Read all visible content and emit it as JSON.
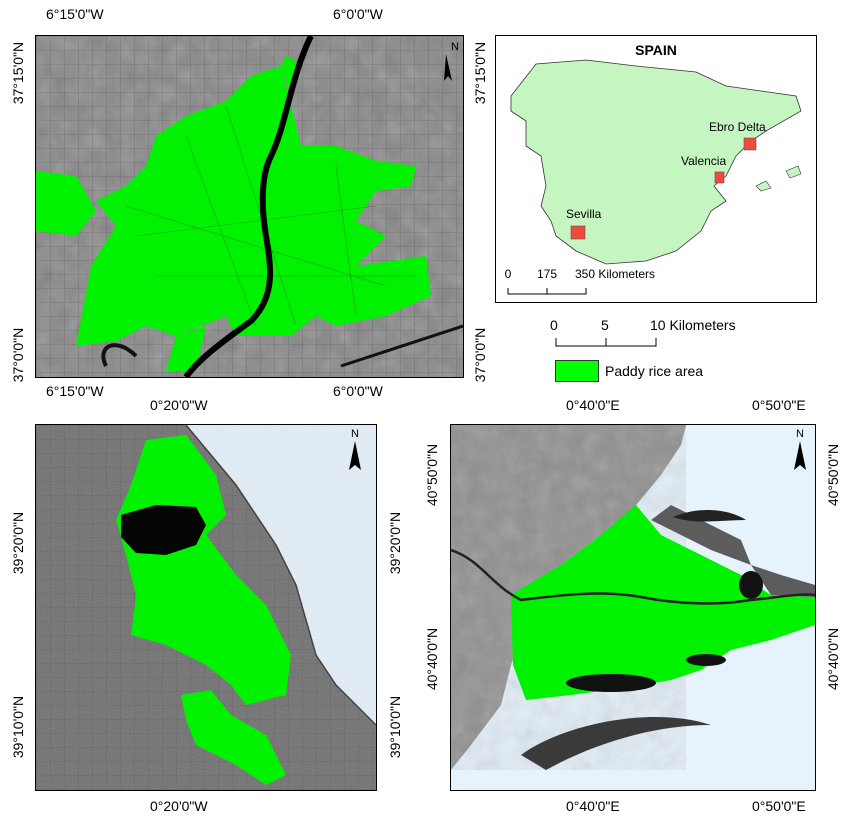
{
  "map1": {
    "top_labels": [
      "6°15'0\"W",
      "6°0'0\"W"
    ],
    "bottom_labels": [
      "6°15'0\"W",
      "6°0'0\"W"
    ],
    "left_labels": [
      "37°15'0\"N",
      "37°0'0\"N"
    ],
    "right_labels": [
      "37°15'0\"N",
      "37°0'0\"N"
    ],
    "north": "N"
  },
  "map2": {
    "top_labels": [
      "0°20'0\"W"
    ],
    "bottom_labels": [
      "0°20'0\"W"
    ],
    "left_labels": [
      "39°20'0\"N",
      "39°10'0\"N"
    ],
    "right_labels": [
      "39°20'0\"N",
      "39°10'0\"N"
    ],
    "north": "N"
  },
  "map3": {
    "top_labels": [
      "0°40'0\"E",
      "0°50'0\"E"
    ],
    "bottom_labels": [
      "0°40'0\"E",
      "0°50'0\"E"
    ],
    "left_labels": [
      "40°50'0\"N",
      "40°40'0\"N"
    ],
    "right_labels": [
      "40°50'0\"N",
      "40°40'0\"N"
    ],
    "north": "N"
  },
  "inset": {
    "title": "SPAIN",
    "sites": [
      "Ebro Delta",
      "Valencia",
      "Sevilla"
    ],
    "scale_ticks": [
      "0",
      "175",
      "350 Kilometers"
    ]
  },
  "scale": {
    "ticks": [
      "0",
      "5",
      "10 Kilometers"
    ]
  },
  "legend": {
    "label": "Paddy rice area"
  },
  "colors": {
    "paddy": "#00ff00",
    "sea": "#e6f2fc",
    "land_inset": "#c5f5c0",
    "site": "#f04a3c"
  }
}
